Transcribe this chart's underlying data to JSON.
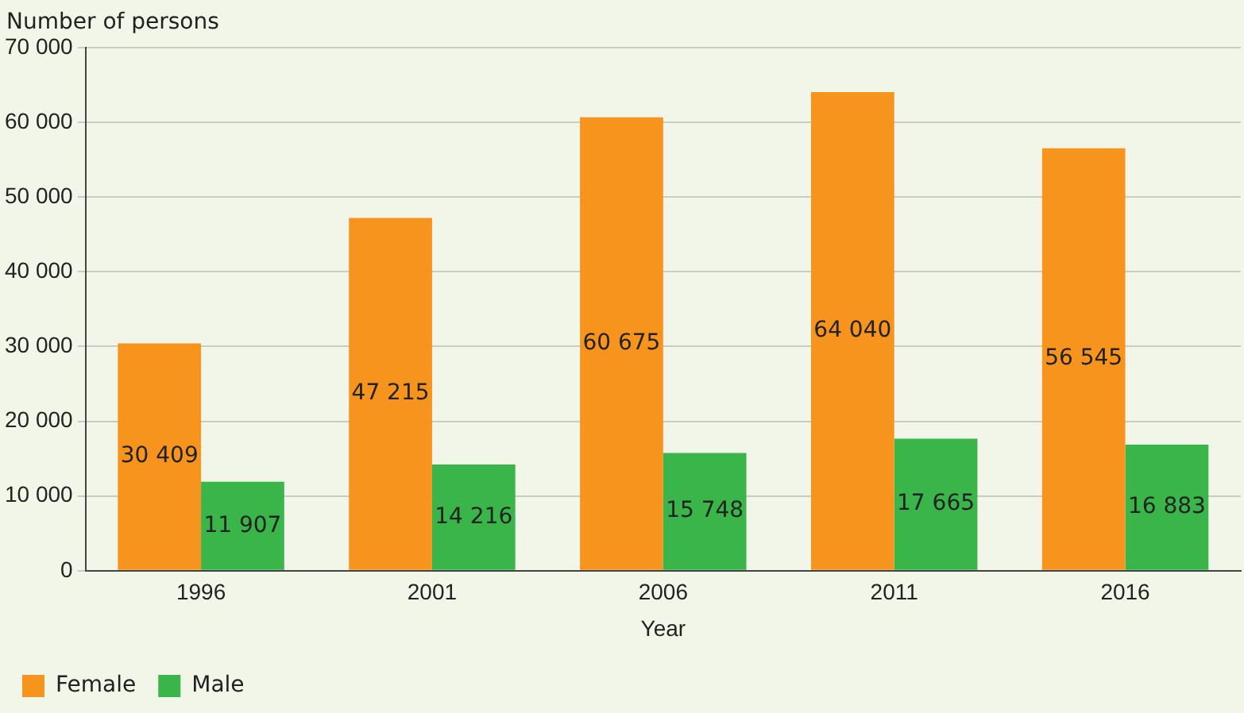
{
  "chart_data": {
    "type": "bar",
    "ylabel": "Number of persons",
    "xlabel": "Year",
    "categories": [
      "1996",
      "2001",
      "2006",
      "2011",
      "2016"
    ],
    "series": [
      {
        "name": "Female",
        "color": "#f7941d",
        "values": [
          30409,
          47215,
          60675,
          64040,
          56545
        ],
        "value_labels": [
          "30 409",
          "47 215",
          "60 675",
          "64 040",
          "56 545"
        ]
      },
      {
        "name": "Male",
        "color": "#39b54a",
        "values": [
          11907,
          14216,
          15748,
          17665,
          16883
        ],
        "value_labels": [
          "11 907",
          "14 216",
          "15 748",
          "17 665",
          "16 883"
        ]
      }
    ],
    "ylim": [
      0,
      70000
    ],
    "yticks": [
      {
        "value": 0,
        "label": "0"
      },
      {
        "value": 10000,
        "label": "10 000"
      },
      {
        "value": 20000,
        "label": "20 000"
      },
      {
        "value": 30000,
        "label": "30 000"
      },
      {
        "value": 40000,
        "label": "40 000"
      },
      {
        "value": 50000,
        "label": "50 000"
      },
      {
        "value": 60000,
        "label": "60 000"
      },
      {
        "value": 70000,
        "label": "70 000"
      }
    ],
    "grid": "y",
    "legend": "bottom left"
  }
}
